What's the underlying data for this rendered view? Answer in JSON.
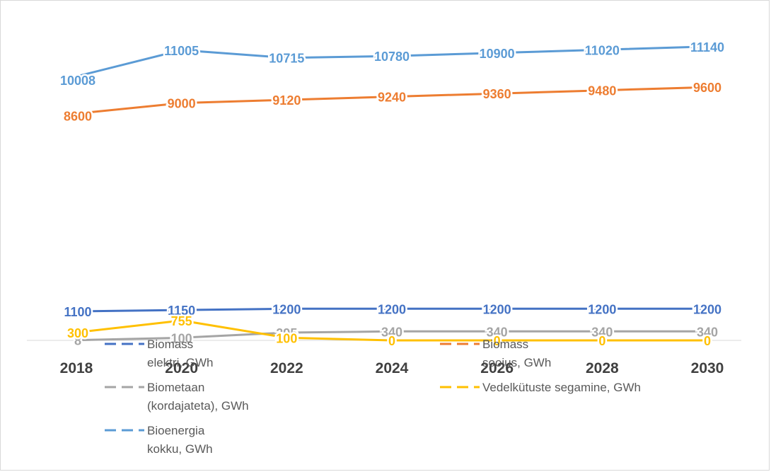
{
  "chart_data": {
    "type": "line",
    "title": "",
    "xlabel": "",
    "ylabel": "",
    "categories": [
      "2018",
      "2020",
      "2022",
      "2024",
      "2026",
      "2028",
      "2030"
    ],
    "ylim": [
      0,
      11800
    ],
    "grid": false,
    "legend_position": "bottom",
    "series": [
      {
        "name": "Biomass elektri, GWh",
        "legend_lines": [
          "Biomass",
          "elektri, GWh"
        ],
        "color": "#4472c4",
        "values": [
          1100,
          1150,
          1200,
          1200,
          1200,
          1200,
          1200
        ],
        "labels": [
          "1100",
          "1150",
          "1200",
          "1200",
          "1200",
          "1200",
          "1200"
        ]
      },
      {
        "name": "Biomass soojus, GWh",
        "legend_lines": [
          "Biomass",
          "soojus, GWh"
        ],
        "color": "#ed7d31",
        "values": [
          8600,
          9000,
          9120,
          9240,
          9360,
          9480,
          9600
        ],
        "labels": [
          "8600",
          "9000",
          "9120",
          "9240",
          "9360",
          "9480",
          "9600"
        ]
      },
      {
        "name": "Biometaan (kordajateta), GWh",
        "legend_lines": [
          "Biometaan",
          "(kordajateta), GWh"
        ],
        "color": "#a5a5a5",
        "values": [
          8,
          100,
          295,
          340,
          340,
          340,
          340
        ],
        "labels": [
          "8",
          "100",
          "295",
          "340",
          "340",
          "340",
          "340"
        ]
      },
      {
        "name": "Vedelkütuste segamine, GWh",
        "legend_lines": [
          "Vedelkütuste segamine, GWh"
        ],
        "color": "#ffc000",
        "values": [
          300,
          755,
          100,
          0,
          0,
          0,
          0
        ],
        "labels": [
          "300",
          "755",
          "100",
          "0",
          "0",
          "0",
          "0"
        ]
      },
      {
        "name": "Bioenergia kokku, GWh",
        "legend_lines": [
          "Bioenergia",
          "kokku, GWh"
        ],
        "color": "#5b9bd5",
        "values": [
          10008,
          11005,
          10715,
          10780,
          10900,
          11020,
          11140
        ],
        "labels": [
          "10008",
          "11005",
          "10715",
          "10780",
          "10900",
          "11020",
          "11140"
        ]
      }
    ]
  }
}
